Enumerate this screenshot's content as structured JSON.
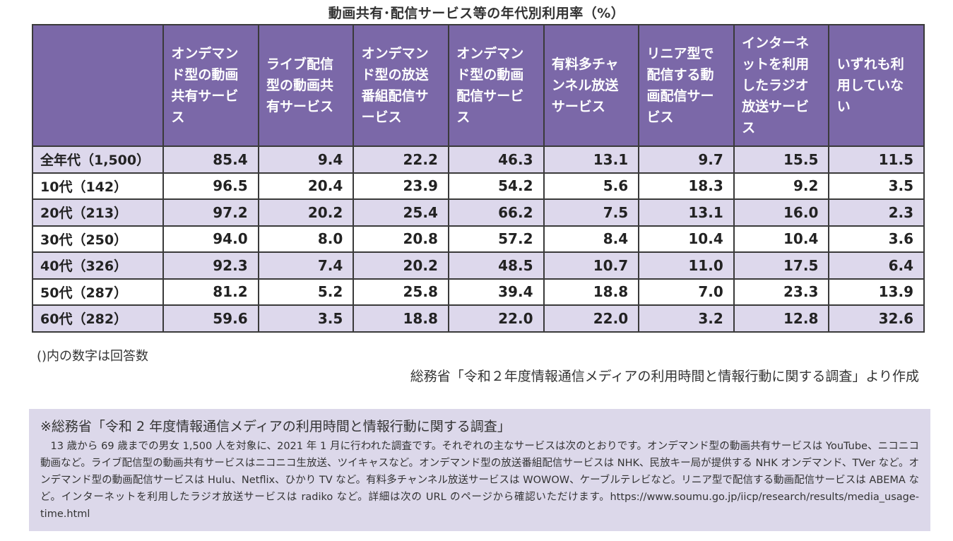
{
  "title": "動画共有･配信サービス等の年代別利用率（%）",
  "table": {
    "headers": [
      "",
      "オンデマンド型の動画共有サービス",
      "ライブ配信型の動画共有サービス",
      "オンデマンド型の放送番組配信サービス",
      "オンデマンド型の動画配信サービス",
      "有料多チャンネル放送サービス",
      "リニア型で配信する動画配信サービス",
      "インターネットを利用したラジオ放送サービス",
      "いずれも利用していない"
    ],
    "rows": [
      {
        "label": "全年代（1,500）",
        "values": [
          "85.4",
          "9.4",
          "22.2",
          "46.3",
          "13.1",
          "9.7",
          "15.5",
          "11.5"
        ]
      },
      {
        "label": "10代（142）",
        "values": [
          "96.5",
          "20.4",
          "23.9",
          "54.2",
          "5.6",
          "18.3",
          "9.2",
          "3.5"
        ]
      },
      {
        "label": "20代（213）",
        "values": [
          "97.2",
          "20.2",
          "25.4",
          "66.2",
          "7.5",
          "13.1",
          "16.0",
          "2.3"
        ]
      },
      {
        "label": "30代（250）",
        "values": [
          "94.0",
          "8.0",
          "20.8",
          "57.2",
          "8.4",
          "10.4",
          "10.4",
          "3.6"
        ]
      },
      {
        "label": "40代（326）",
        "values": [
          "92.3",
          "7.4",
          "20.2",
          "48.5",
          "10.7",
          "11.0",
          "17.5",
          "6.4"
        ]
      },
      {
        "label": "50代（287）",
        "values": [
          "81.2",
          "5.2",
          "25.8",
          "39.4",
          "18.8",
          "7.0",
          "23.3",
          "13.9"
        ]
      },
      {
        "label": "60代（282）",
        "values": [
          "59.6",
          "3.5",
          "18.8",
          "22.0",
          "22.0",
          "3.2",
          "12.8",
          "32.6"
        ]
      }
    ]
  },
  "note": "()内の数字は回答数",
  "source": "総務省「令和２年度情報通信メディアの利用時間と情報行動に関する調査」より作成",
  "info": {
    "title": "※総務省「令和 2 年度情報通信メディアの利用時間と情報行動に関する調査」",
    "body": "13 歳から 69 歳までの男女 1,500 人を対象に、2021 年 1 月に行われた調査です。それぞれの主なサービスは次のとおりです。オンデマンド型の動画共有サービスは YouTube、ニコニコ動画など。ライブ配信型の動画共有サービスはニコニコ生放送、ツイキャスなど。オンデマンド型の放送番組配信サービスは NHK、民放キー局が提供する NHK オンデマンド、TVer など。オンデマンド型の動画配信サービスは Hulu、Netflix、ひかり TV など。有料多チャンネル放送サービスは WOWOW、ケーブルテレビなど。リニア型で配信する動画配信サービスは ABEMA など。インターネットを利用したラジオ放送サービスは radiko など。詳細は次の URL のページから確認いただけます。https://www.soumu.go.jp/iicp/research/results/media_usage-time.html"
  },
  "colors": {
    "header_bg": "#7b68a8",
    "header_text": "#ffffff",
    "row_alt_bg": "#ddd8ec",
    "info_bg": "#dcd8ea",
    "border": "#3a3a3a"
  }
}
